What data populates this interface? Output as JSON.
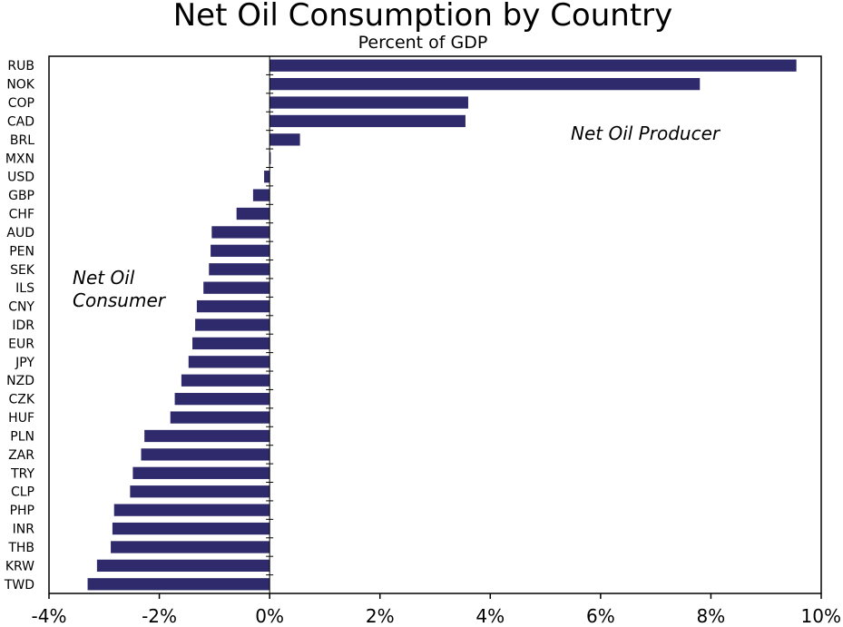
{
  "chart_data": {
    "type": "bar",
    "orientation": "horizontal",
    "title": "Net Oil Consumption by Country",
    "subtitle": "Percent of GDP",
    "xlabel": "",
    "ylabel": "",
    "xlim": [
      -4,
      10
    ],
    "x_ticks": [
      -4,
      -2,
      0,
      2,
      4,
      6,
      8,
      10
    ],
    "x_tick_labels": [
      "-4%",
      "-2%",
      "0%",
      "2%",
      "4%",
      "6%",
      "8%",
      "10%"
    ],
    "categories": [
      "RUB",
      "NOK",
      "COP",
      "CAD",
      "BRL",
      "MXN",
      "USD",
      "GBP",
      "CHF",
      "AUD",
      "PEN",
      "SEK",
      "ILS",
      "CNY",
      "IDR",
      "EUR",
      "JPY",
      "NZD",
      "CZK",
      "HUF",
      "PLN",
      "ZAR",
      "TRY",
      "CLP",
      "PHP",
      "INR",
      "THB",
      "KRW",
      "TWD"
    ],
    "values": [
      9.55,
      7.8,
      3.6,
      3.55,
      0.55,
      0.02,
      -0.1,
      -0.3,
      -0.6,
      -1.05,
      -1.07,
      -1.1,
      -1.2,
      -1.32,
      -1.35,
      -1.4,
      -1.47,
      -1.6,
      -1.72,
      -1.8,
      -2.27,
      -2.33,
      -2.48,
      -2.53,
      -2.82,
      -2.85,
      -2.88,
      -3.13,
      -3.3
    ],
    "bar_color": "#2e2a6b",
    "grid": false,
    "annotations": [
      {
        "text": "Net Oil Producer",
        "position": "upper-right"
      },
      {
        "text": "Net Oil",
        "position": "middle-left"
      },
      {
        "text": "Consumer",
        "position": "middle-left"
      }
    ]
  }
}
